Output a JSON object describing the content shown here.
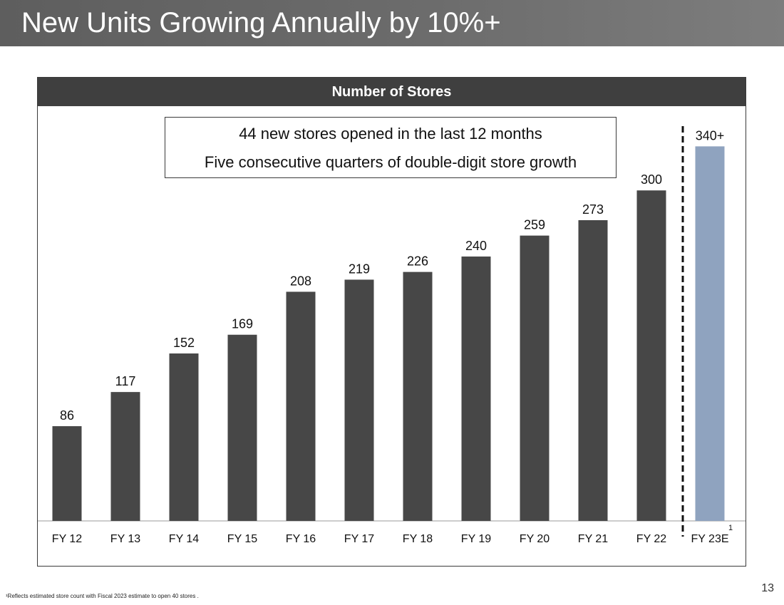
{
  "slide": {
    "title": "New Units Growing Annually by 10%+",
    "page_number": "13",
    "footnote": "¹Reflects estimated store count with Fiscal 2023 estimate to open 40 stores ."
  },
  "callout": {
    "line1": "44 new stores opened in the last 12 months",
    "line2": "Five consecutive quarters of double-digit store growth"
  },
  "colors": {
    "actual_bar": "#474747",
    "estimate_bar": "#8fa3bf",
    "header_bg": "#3f3f3f"
  },
  "chart_data": {
    "type": "bar",
    "title": "Number of Stores",
    "xlabel": "",
    "ylabel": "",
    "ylim": [
      0,
      370
    ],
    "grid": false,
    "categories": [
      "FY 12",
      "FY 13",
      "FY 14",
      "FY 15",
      "FY 16",
      "FY 17",
      "FY 18",
      "FY 19",
      "FY 20",
      "FY 21",
      "FY 22",
      "FY 23E"
    ],
    "values": [
      86,
      117,
      152,
      169,
      208,
      219,
      226,
      240,
      259,
      273,
      300,
      340
    ],
    "data_labels": [
      "86",
      "117",
      "152",
      "169",
      "208",
      "219",
      "226",
      "240",
      "259",
      "273",
      "300",
      "340+"
    ],
    "estimate_flags": [
      false,
      false,
      false,
      false,
      false,
      false,
      false,
      false,
      false,
      false,
      false,
      true
    ],
    "category_footnotes": [
      "",
      "",
      "",
      "",
      "",
      "",
      "",
      "",
      "",
      "",
      "",
      "1"
    ],
    "separator": "dashed line between FY 22 and FY 23E"
  }
}
